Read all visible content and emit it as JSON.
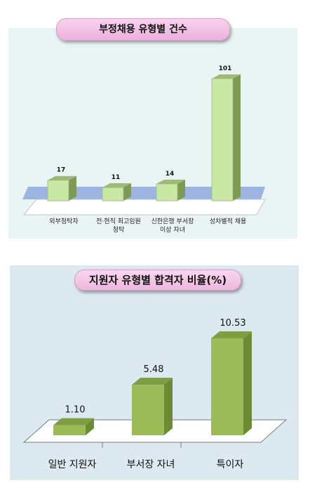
{
  "chart_data": [
    {
      "type": "bar",
      "title": "부정채용 유형별 건수",
      "categories": [
        "외부청탁자",
        "전·현직 최고임원 청탁",
        "신한은행 부서장 이상 자녀",
        "성차별적 채용"
      ],
      "category_lines": [
        [
          "외부청탁자"
        ],
        [
          "전·현직 최고임원",
          "청탁"
        ],
        [
          "신한은행 부서장",
          "이상 자녀"
        ],
        [
          "성차별적 채용"
        ]
      ],
      "values": [
        17,
        11,
        14,
        101
      ],
      "value_labels": [
        "17",
        "11",
        "14",
        "101"
      ],
      "ylim": [
        0,
        120
      ],
      "grid": false,
      "colors": {
        "bar_front": "#c9e8a4",
        "bar_side": "#7f9a57",
        "bar_top": "#9fba75",
        "floor": "#8fa8dc",
        "bg": "#e9f5f4"
      }
    },
    {
      "type": "bar",
      "title": "지원자 유형별 합격자 비율(%)",
      "categories": [
        "일반 지원자",
        "부서장 자녀",
        "특이자"
      ],
      "values": [
        1.1,
        5.48,
        10.53
      ],
      "value_labels": [
        "1.10",
        "5.48",
        "10.53"
      ],
      "ylim": [
        0,
        12
      ],
      "grid": false,
      "colors": {
        "bar_front": "#9bbb59",
        "bar_side": "#6d8a35",
        "bar_top": "#7e9e43",
        "bg": "#dde9f0"
      }
    }
  ]
}
